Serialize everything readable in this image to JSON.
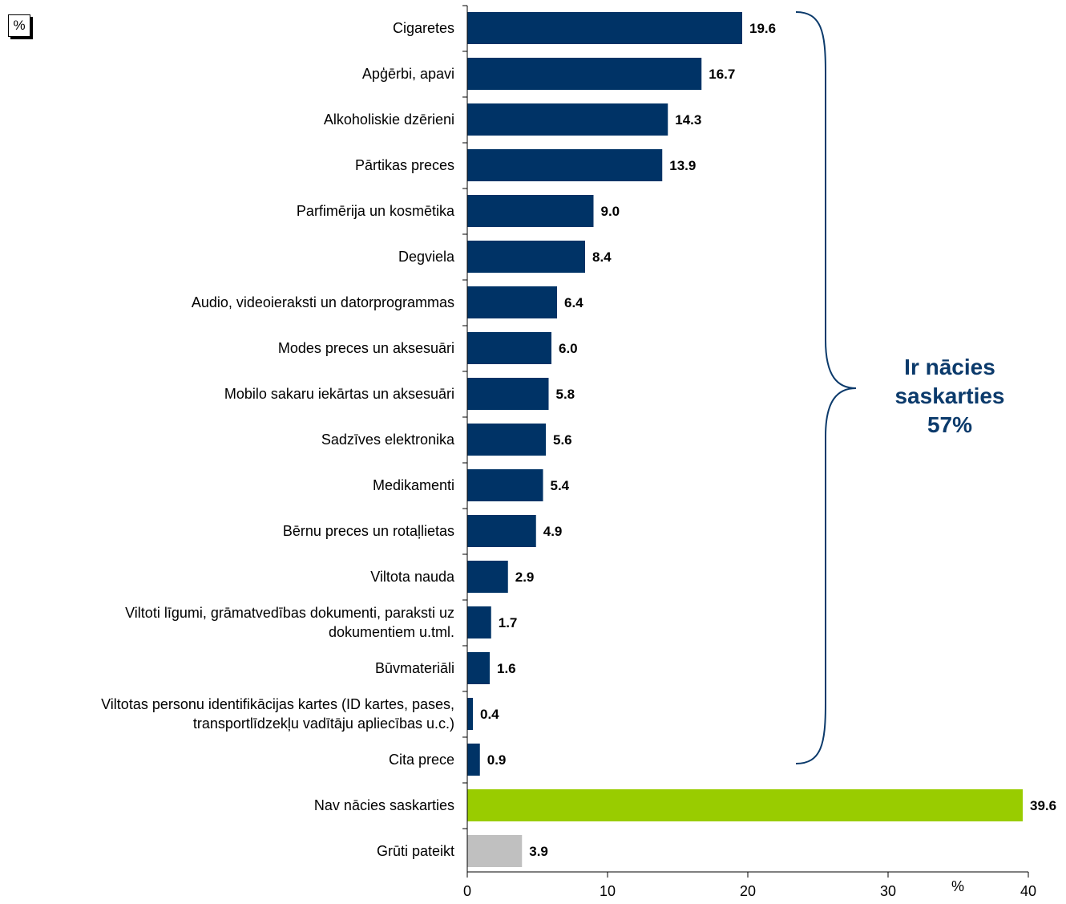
{
  "corner_label": "%",
  "bracket": {
    "line1": "Ir nācies",
    "line2": "saskarties",
    "line3": "57%"
  },
  "chart_data": {
    "type": "bar",
    "orientation": "horizontal",
    "categories": [
      "Cigaretes",
      "Apģērbi, apavi",
      "Alkoholiskie dzērieni",
      "Pārtikas preces",
      "Parfimērija un kosmētika",
      "Degviela",
      "Audio, videoieraksti un datorprogrammas",
      "Modes preces un aksesuāri",
      "Mobilo sakaru iekārtas un aksesuāri",
      "Sadzīves elektronika",
      "Medikamenti",
      "Bērnu preces un rotaļlietas",
      "Viltota nauda",
      "Viltoti līgumi, grāmatvedības dokumenti, paraksti uz dokumentiem u.tml.",
      "Būvmateriāli",
      "Viltotas personu identifikācijas kartes (ID kartes, pases, transportlīdzekļu vadītāju apliecības u.c.)",
      "Cita prece",
      "Nav nācies saskarties",
      "Grūti pateikt"
    ],
    "category_lines": [
      [
        "Cigaretes"
      ],
      [
        "Apģērbi, apavi"
      ],
      [
        "Alkoholiskie dzērieni"
      ],
      [
        "Pārtikas preces"
      ],
      [
        "Parfimērija un kosmētika"
      ],
      [
        "Degviela"
      ],
      [
        "Audio, videoieraksti un datorprogrammas"
      ],
      [
        "Modes preces un aksesuāri"
      ],
      [
        "Mobilo sakaru iekārtas un aksesuāri"
      ],
      [
        "Sadzīves elektronika"
      ],
      [
        "Medikamenti"
      ],
      [
        "Bērnu preces un rotaļlietas"
      ],
      [
        "Viltota nauda"
      ],
      [
        "Viltoti līgumi, grāmatvedības dokumenti, paraksti uz",
        "dokumentiem u.tml."
      ],
      [
        "Būvmateriāli"
      ],
      [
        "Viltotas personu identifikācijas kartes (ID kartes, pases,",
        "transportlīdzekļu vadītāju apliecības u.c.)"
      ],
      [
        "Cita prece"
      ],
      [
        "Nav nācies saskarties"
      ],
      [
        "Grūti pateikt"
      ]
    ],
    "values": [
      19.6,
      16.7,
      14.3,
      13.9,
      9.0,
      8.4,
      6.4,
      6.0,
      5.8,
      5.6,
      5.4,
      4.9,
      2.9,
      1.7,
      1.6,
      0.4,
      0.9,
      39.6,
      3.9
    ],
    "value_labels": [
      "19.6",
      "16.7",
      "14.3",
      "13.9",
      "9.0",
      "8.4",
      "6.4",
      "6.0",
      "5.8",
      "5.6",
      "5.4",
      "4.9",
      "2.9",
      "1.7",
      "1.6",
      "0.4",
      "0.9",
      "39.6",
      "3.9"
    ],
    "bar_colors": [
      "#003366",
      "#003366",
      "#003366",
      "#003366",
      "#003366",
      "#003366",
      "#003366",
      "#003366",
      "#003366",
      "#003366",
      "#003366",
      "#003366",
      "#003366",
      "#003366",
      "#003366",
      "#003366",
      "#003366",
      "#99cc00",
      "#c0c0c0"
    ],
    "xlim": [
      0,
      40
    ],
    "xticks": [
      0,
      10,
      20,
      30,
      40
    ],
    "xtick_labels": [
      "0",
      "10",
      "20",
      "30",
      "40"
    ],
    "xlabel": "%",
    "grid": false
  }
}
